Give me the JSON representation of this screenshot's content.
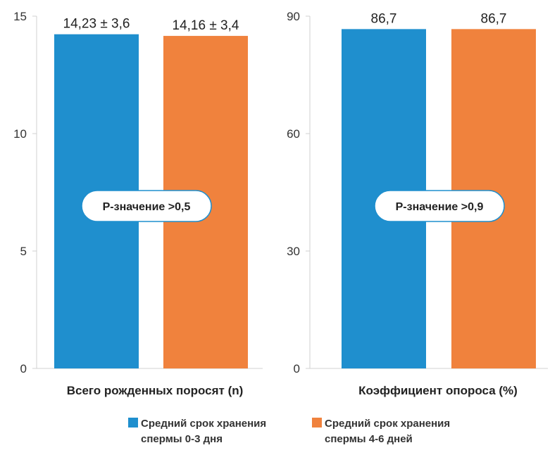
{
  "chart_data": [
    {
      "type": "bar",
      "xlabel": "Всего рожденных поросят (n)",
      "ylim": [
        0,
        15
      ],
      "yticks": [
        0,
        5,
        10,
        15
      ],
      "series": [
        {
          "name": "Средний срок хранения спермы 0-3 дня",
          "value": 14.23,
          "label": "14,23 ± 3,6",
          "color": "#1f8fce"
        },
        {
          "name": "Средний срок хранения спермы 4-6 дней",
          "value": 14.16,
          "label": "14,16 ± 3,4",
          "color": "#f0823d"
        }
      ],
      "annotation": "P-значение >0,5",
      "grid": false
    },
    {
      "type": "bar",
      "xlabel": "Коэффициент опороса (%)",
      "ylim": [
        0,
        90
      ],
      "yticks": [
        0,
        30,
        60,
        90
      ],
      "series": [
        {
          "name": "Средний срок хранения спермы 0-3 дня",
          "value": 86.7,
          "label": "86,7",
          "color": "#1f8fce"
        },
        {
          "name": "Средний срок хранения спермы 4-6 дней",
          "value": 86.7,
          "label": "86,7",
          "color": "#f0823d"
        }
      ],
      "annotation": "P-значение >0,9",
      "grid": false
    }
  ],
  "legend": {
    "placement": "bottom",
    "items": [
      {
        "label": "Средний срок хранения\nспермы 0-3 дня",
        "color": "#1f8fce"
      },
      {
        "label": "Средний срок хранения\nспермы 4-6 дней",
        "color": "#f0823d"
      }
    ]
  }
}
